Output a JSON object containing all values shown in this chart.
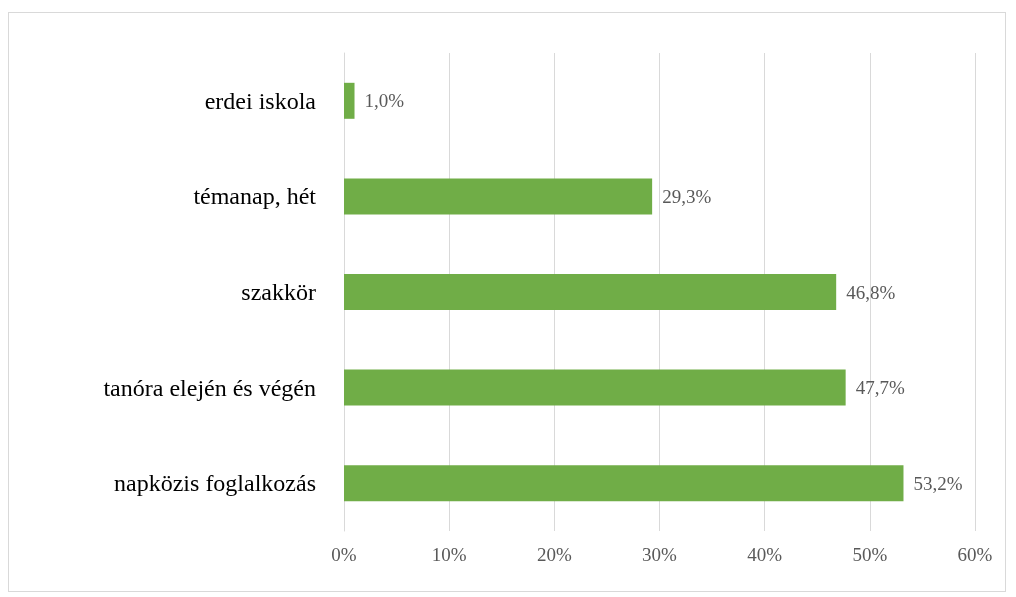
{
  "chart_data": {
    "type": "bar",
    "orientation": "horizontal",
    "categories": [
      "erdei iskola",
      "témanap, hét",
      "szakkör",
      "tanóra elején és végén",
      "napközis foglalkozás"
    ],
    "values": [
      1.0,
      29.3,
      46.8,
      47.7,
      53.2
    ],
    "value_labels": [
      "1,0%",
      "29,3%",
      "46,8%",
      "47,7%",
      "53,2%"
    ],
    "color": "#70ad47",
    "xlim": [
      0,
      60
    ],
    "xticks": [
      {
        "value": 0,
        "label": "0%"
      },
      {
        "value": 10,
        "label": "10%"
      },
      {
        "value": 20,
        "label": "20%"
      },
      {
        "value": 30,
        "label": "30%"
      },
      {
        "value": 40,
        "label": "40%"
      },
      {
        "value": 50,
        "label": "50%"
      },
      {
        "value": 60,
        "label": "60%"
      }
    ],
    "grid": "x"
  }
}
